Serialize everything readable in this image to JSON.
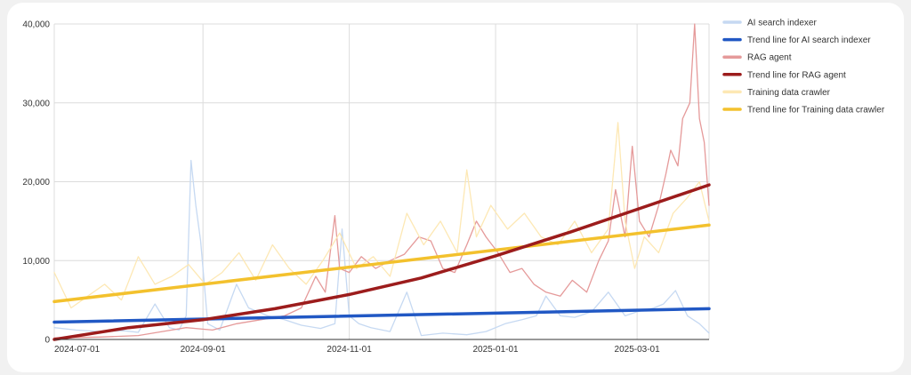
{
  "chart_data": {
    "type": "line",
    "title": "",
    "xlabel": "",
    "ylabel": "",
    "ylim": [
      0,
      40000
    ],
    "xlim": [
      "2024-07-01",
      "2025-03-31"
    ],
    "x_ticks": [
      "2024-07-01",
      "2024-09-01",
      "2024-11-01",
      "2025-01-01",
      "2025-03-01"
    ],
    "y_ticks": [
      0,
      10000,
      20000,
      30000,
      40000
    ],
    "y_tick_labels": [
      "0",
      "10,000",
      "20,000",
      "30,000",
      "40,000"
    ],
    "grid": true,
    "legend_position": "right",
    "series": [
      {
        "name": "AI search indexer",
        "color": "#c6d9f2",
        "width": 1.3,
        "kind": "data",
        "points": [
          [
            "2024-07-01",
            1500
          ],
          [
            "2024-07-10",
            1200
          ],
          [
            "2024-07-20",
            1000
          ],
          [
            "2024-07-30",
            1100
          ],
          [
            "2024-08-05",
            900
          ],
          [
            "2024-08-12",
            4500
          ],
          [
            "2024-08-18",
            1500
          ],
          [
            "2024-08-22",
            1200
          ],
          [
            "2024-08-25",
            3000
          ],
          [
            "2024-08-27",
            22700
          ],
          [
            "2024-08-29",
            17000
          ],
          [
            "2024-08-31",
            12500
          ],
          [
            "2024-09-03",
            2000
          ],
          [
            "2024-09-08",
            1200
          ],
          [
            "2024-09-15",
            7000
          ],
          [
            "2024-09-20",
            4000
          ],
          [
            "2024-09-28",
            3000
          ],
          [
            "2024-10-05",
            2500
          ],
          [
            "2024-10-12",
            1800
          ],
          [
            "2024-10-20",
            1400
          ],
          [
            "2024-10-26",
            2000
          ],
          [
            "2024-10-29",
            14000
          ],
          [
            "2024-11-01",
            3000
          ],
          [
            "2024-11-05",
            2000
          ],
          [
            "2024-11-10",
            1500
          ],
          [
            "2024-11-18",
            1000
          ],
          [
            "2024-11-25",
            6000
          ],
          [
            "2024-12-01",
            500
          ],
          [
            "2024-12-10",
            800
          ],
          [
            "2024-12-20",
            600
          ],
          [
            "2024-12-28",
            1000
          ],
          [
            "2025-01-05",
            2000
          ],
          [
            "2025-01-12",
            2500
          ],
          [
            "2025-01-18",
            3000
          ],
          [
            "2025-01-22",
            5500
          ],
          [
            "2025-01-28",
            3000
          ],
          [
            "2025-02-03",
            2800
          ],
          [
            "2025-02-10",
            3500
          ],
          [
            "2025-02-17",
            6000
          ],
          [
            "2025-02-24",
            3000
          ],
          [
            "2025-03-01",
            3500
          ],
          [
            "2025-03-08",
            4000
          ],
          [
            "2025-03-12",
            4500
          ],
          [
            "2025-03-17",
            6200
          ],
          [
            "2025-03-22",
            3000
          ],
          [
            "2025-03-27",
            2000
          ],
          [
            "2025-03-31",
            800
          ]
        ]
      },
      {
        "name": "Trend line for AI search indexer",
        "color": "#2158c4",
        "width": 3.5,
        "kind": "trend",
        "points": [
          [
            "2024-07-01",
            2200
          ],
          [
            "2025-03-31",
            3900
          ]
        ]
      },
      {
        "name": "RAG agent",
        "color": "#e59a9a",
        "width": 1.3,
        "kind": "data",
        "points": [
          [
            "2024-07-01",
            200
          ],
          [
            "2024-07-20",
            300
          ],
          [
            "2024-08-05",
            500
          ],
          [
            "2024-08-15",
            1000
          ],
          [
            "2024-08-25",
            1500
          ],
          [
            "2024-09-05",
            1200
          ],
          [
            "2024-09-15",
            2000
          ],
          [
            "2024-09-25",
            2500
          ],
          [
            "2024-10-05",
            3000
          ],
          [
            "2024-10-12",
            4000
          ],
          [
            "2024-10-18",
            8000
          ],
          [
            "2024-10-22",
            6000
          ],
          [
            "2024-10-26",
            15700
          ],
          [
            "2024-10-28",
            9000
          ],
          [
            "2024-11-01",
            8500
          ],
          [
            "2024-11-06",
            10500
          ],
          [
            "2024-11-12",
            9000
          ],
          [
            "2024-11-18",
            10000
          ],
          [
            "2024-11-24",
            10800
          ],
          [
            "2024-11-30",
            13000
          ],
          [
            "2024-12-05",
            12500
          ],
          [
            "2024-12-10",
            9000
          ],
          [
            "2024-12-15",
            8500
          ],
          [
            "2024-12-20",
            12000
          ],
          [
            "2024-12-24",
            15000
          ],
          [
            "2024-12-28",
            13000
          ],
          [
            "2025-01-02",
            11000
          ],
          [
            "2025-01-07",
            8500
          ],
          [
            "2025-01-12",
            9000
          ],
          [
            "2025-01-17",
            7000
          ],
          [
            "2025-01-22",
            6000
          ],
          [
            "2025-01-28",
            5500
          ],
          [
            "2025-02-02",
            7500
          ],
          [
            "2025-02-08",
            6000
          ],
          [
            "2025-02-13",
            10000
          ],
          [
            "2025-02-17",
            12500
          ],
          [
            "2025-02-20",
            19000
          ],
          [
            "2025-02-24",
            13000
          ],
          [
            "2025-02-27",
            24500
          ],
          [
            "2025-03-02",
            15000
          ],
          [
            "2025-03-06",
            13000
          ],
          [
            "2025-03-10",
            17000
          ],
          [
            "2025-03-13",
            21000
          ],
          [
            "2025-03-15",
            24000
          ],
          [
            "2025-03-18",
            22000
          ],
          [
            "2025-03-20",
            28000
          ],
          [
            "2025-03-23",
            30000
          ],
          [
            "2025-03-25",
            40000
          ],
          [
            "2025-03-27",
            28000
          ],
          [
            "2025-03-29",
            25000
          ],
          [
            "2025-03-31",
            17000
          ]
        ]
      },
      {
        "name": "Trend line for RAG agent",
        "color": "#9c1c1c",
        "width": 3.5,
        "kind": "trend",
        "points": [
          [
            "2024-07-01",
            0
          ],
          [
            "2024-08-01",
            1500
          ],
          [
            "2024-09-01",
            2500
          ],
          [
            "2024-10-01",
            3900
          ],
          [
            "2024-11-01",
            5700
          ],
          [
            "2024-12-01",
            7800
          ],
          [
            "2025-01-01",
            10600
          ],
          [
            "2025-02-01",
            13600
          ],
          [
            "2025-03-01",
            16500
          ],
          [
            "2025-03-31",
            19600
          ]
        ]
      },
      {
        "name": "Training data crawler",
        "color": "#fde8b4",
        "width": 1.3,
        "kind": "data",
        "points": [
          [
            "2024-07-01",
            8500
          ],
          [
            "2024-07-08",
            4000
          ],
          [
            "2024-07-15",
            5500
          ],
          [
            "2024-07-22",
            7000
          ],
          [
            "2024-07-29",
            5000
          ],
          [
            "2024-08-05",
            10500
          ],
          [
            "2024-08-12",
            7000
          ],
          [
            "2024-08-19",
            8000
          ],
          [
            "2024-08-26",
            9500
          ],
          [
            "2024-09-02",
            7000
          ],
          [
            "2024-09-09",
            8500
          ],
          [
            "2024-09-16",
            11000
          ],
          [
            "2024-09-23",
            7500
          ],
          [
            "2024-09-30",
            12000
          ],
          [
            "2024-10-07",
            9000
          ],
          [
            "2024-10-14",
            7000
          ],
          [
            "2024-10-21",
            10000
          ],
          [
            "2024-10-28",
            13500
          ],
          [
            "2024-11-04",
            9000
          ],
          [
            "2024-11-11",
            10500
          ],
          [
            "2024-11-18",
            8000
          ],
          [
            "2024-11-25",
            16000
          ],
          [
            "2024-12-02",
            12000
          ],
          [
            "2024-12-09",
            15000
          ],
          [
            "2024-12-16",
            11000
          ],
          [
            "2024-12-20",
            21500
          ],
          [
            "2024-12-24",
            13000
          ],
          [
            "2024-12-30",
            17000
          ],
          [
            "2025-01-06",
            14000
          ],
          [
            "2025-01-13",
            16000
          ],
          [
            "2025-01-20",
            13000
          ],
          [
            "2025-01-27",
            12000
          ],
          [
            "2025-02-03",
            15000
          ],
          [
            "2025-02-10",
            11000
          ],
          [
            "2025-02-17",
            14000
          ],
          [
            "2025-02-21",
            27500
          ],
          [
            "2025-02-24",
            15000
          ],
          [
            "2025-02-28",
            9000
          ],
          [
            "2025-03-04",
            13000
          ],
          [
            "2025-03-10",
            11000
          ],
          [
            "2025-03-16",
            16000
          ],
          [
            "2025-03-22",
            18000
          ],
          [
            "2025-03-27",
            20000
          ],
          [
            "2025-03-31",
            15000
          ]
        ]
      },
      {
        "name": "Trend line for Training data crawler",
        "color": "#f3c12d",
        "width": 3.5,
        "kind": "trend",
        "points": [
          [
            "2024-07-01",
            4800
          ],
          [
            "2025-03-31",
            14500
          ]
        ]
      }
    ]
  },
  "legend": {
    "items": [
      {
        "label": "AI search indexer",
        "color": "#c6d9f2"
      },
      {
        "label": "Trend line for AI search indexer",
        "color": "#2158c4"
      },
      {
        "label": "RAG agent",
        "color": "#e59a9a"
      },
      {
        "label": "Trend line for RAG agent",
        "color": "#9c1c1c"
      },
      {
        "label": "Training data crawler",
        "color": "#fde8b4"
      },
      {
        "label": "Trend line for Training data crawler",
        "color": "#f3c12d"
      }
    ]
  }
}
